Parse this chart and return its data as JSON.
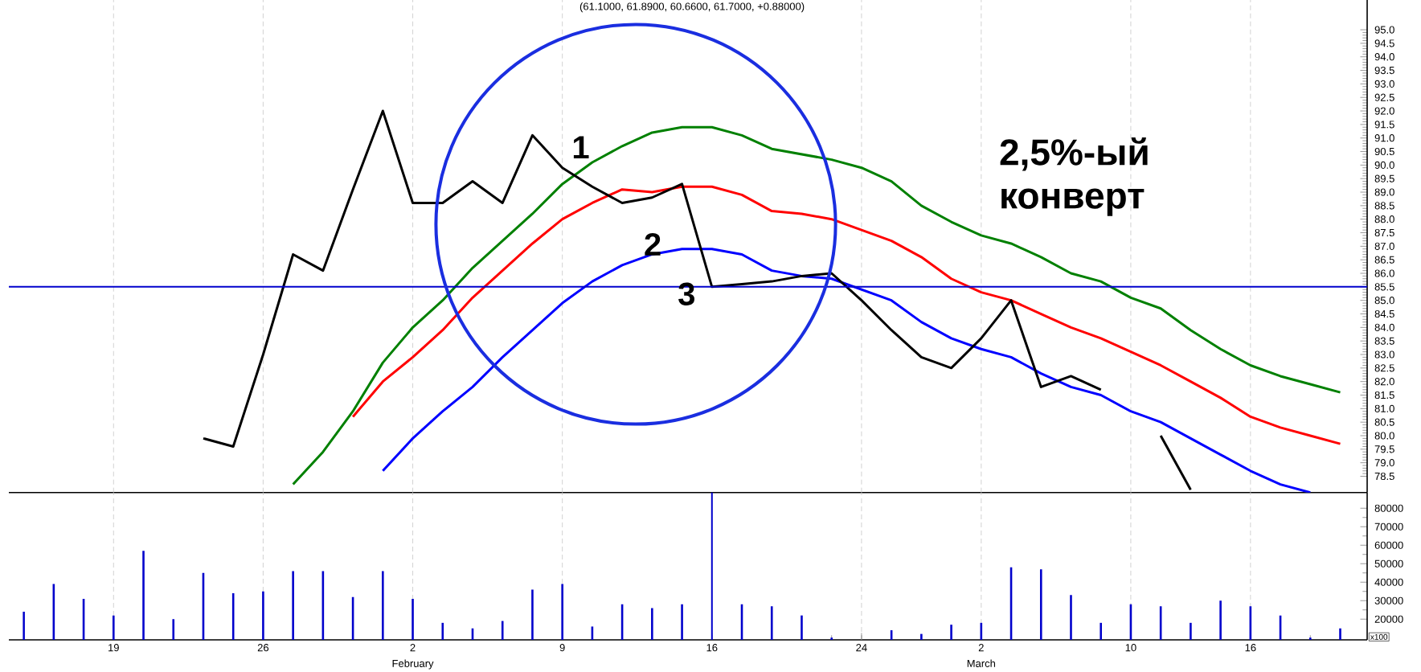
{
  "chart_data": [
    {
      "type": "line",
      "title": "(61.1000, 61.8900, 60.6600, 61.7000, +0.88000)",
      "categories": [
        null,
        null,
        null,
        "19",
        null,
        null,
        null,
        null,
        "26",
        null,
        null,
        null,
        null,
        "2",
        null,
        null,
        null,
        null,
        "9",
        null,
        null,
        null,
        null,
        "16",
        null,
        null,
        null,
        null,
        "24",
        null,
        null,
        null,
        "2",
        null,
        null,
        null,
        null,
        "10",
        null,
        null,
        null,
        "16",
        null,
        null,
        null
      ],
      "series": [
        {
          "color": "#008000",
          "values": [
            null,
            null,
            null,
            null,
            null,
            null,
            null,
            null,
            null,
            78.2,
            79.4,
            80.9,
            82.7,
            84.0,
            85.0,
            86.2,
            87.2,
            88.2,
            89.3,
            90.1,
            90.7,
            91.2,
            91.4,
            91.4,
            91.1,
            90.6,
            90.4,
            90.2,
            89.9,
            89.4,
            88.5,
            87.9,
            87.4,
            87.1,
            86.6,
            86.0,
            85.7,
            85.1,
            84.7,
            83.9,
            83.2,
            82.6,
            82.2,
            81.9,
            81.6
          ]
        },
        {
          "color": "#ff0000",
          "values": [
            null,
            null,
            null,
            null,
            null,
            null,
            null,
            null,
            null,
            null,
            null,
            80.7,
            82.0,
            82.9,
            83.9,
            85.1,
            86.1,
            87.1,
            88.0,
            88.6,
            89.1,
            89.0,
            89.2,
            89.2,
            88.9,
            88.3,
            88.2,
            88.0,
            87.6,
            87.2,
            86.6,
            85.8,
            85.3,
            85.0,
            84.5,
            84.0,
            83.6,
            83.1,
            82.6,
            82.0,
            81.4,
            80.7,
            80.3,
            80.0,
            79.7
          ]
        },
        {
          "color": "#0000ff",
          "values": [
            null,
            null,
            null,
            null,
            null,
            null,
            null,
            null,
            null,
            null,
            null,
            null,
            78.7,
            79.9,
            80.9,
            81.8,
            82.9,
            83.9,
            84.9,
            85.7,
            86.3,
            86.7,
            86.9,
            86.9,
            86.7,
            86.1,
            85.9,
            85.8,
            85.4,
            85.0,
            84.2,
            83.6,
            83.2,
            82.9,
            82.3,
            81.8,
            81.5,
            80.9,
            80.5,
            79.9,
            79.3,
            78.7,
            78.2,
            77.9,
            null
          ]
        },
        {
          "color": "#000000",
          "values": [
            null,
            null,
            null,
            null,
            null,
            null,
            79.9,
            79.6,
            83.0,
            86.7,
            86.1,
            89.1,
            92.0,
            88.6,
            88.6,
            89.4,
            88.6,
            91.1,
            89.9,
            89.2,
            88.6,
            88.8,
            89.3,
            85.5,
            85.6,
            85.7,
            85.9,
            86.0,
            85.0,
            83.9,
            82.9,
            82.5,
            83.6,
            85.0,
            81.8,
            82.2,
            81.7,
            null,
            80.0,
            78.0,
            null,
            null,
            null,
            null,
            null
          ]
        }
      ],
      "ylim": [
        77.9,
        96.1
      ],
      "yticks": [
        78.5,
        {
          "value": 79,
          "label": "79.0"
        },
        79.5,
        {
          "value": 80,
          "label": "80.0"
        },
        80.5,
        {
          "value": 81,
          "label": "81.0"
        },
        81.5,
        {
          "value": 82,
          "label": "82.0"
        },
        82.5,
        {
          "value": 83,
          "label": "83.0"
        },
        83.5,
        {
          "value": 84,
          "label": "84.0"
        },
        84.5,
        {
          "value": 85,
          "label": "85.0"
        },
        85.5,
        {
          "value": 86,
          "label": "86.0"
        },
        86.5,
        {
          "value": 87,
          "label": "87.0"
        },
        87.5,
        {
          "value": 88,
          "label": "88.0"
        },
        88.5,
        {
          "value": 89,
          "label": "89.0"
        },
        89.5,
        {
          "value": 90,
          "label": "90.0"
        },
        90.5,
        {
          "value": 91,
          "label": "91.0"
        },
        91.5,
        {
          "value": 92,
          "label": "92.0"
        },
        92.5,
        {
          "value": 93,
          "label": "93.0"
        },
        93.5,
        {
          "value": 94,
          "label": "94.0"
        },
        94.5,
        {
          "value": 95,
          "label": "95.0"
        }
      ],
      "tick_labels": "y",
      "grid": "x",
      "marker": "none",
      "line_style": "solid",
      "ref_lines": [
        {
          "axis": "y",
          "value": 85.5,
          "color": "#0000cc"
        }
      ],
      "annotations": [
        "1",
        "2",
        "3",
        "2,5%-ый конверт"
      ]
    },
    {
      "type": "bar",
      "categories": [
        null,
        null,
        null,
        "19",
        null,
        null,
        null,
        null,
        "26",
        null,
        null,
        null,
        null,
        "2",
        null,
        null,
        null,
        null,
        "9",
        null,
        null,
        null,
        null,
        "16",
        null,
        null,
        null,
        null,
        "24",
        null,
        null,
        null,
        "2",
        null,
        null,
        null,
        null,
        "10",
        null,
        null,
        null,
        "16",
        null,
        null,
        null
      ],
      "values": [
        24000,
        39000,
        31000,
        22000,
        57000,
        20000,
        45000,
        34000,
        35000,
        46000,
        46000,
        32000,
        46000,
        31000,
        18000,
        15000,
        19000,
        36000,
        39000,
        16000,
        28000,
        26000,
        28000,
        null,
        28000,
        27000,
        22000,
        10000,
        null,
        14000,
        12000,
        17000,
        18000,
        48000,
        47000,
        33000,
        18000,
        28000,
        27000,
        18000,
        30000,
        27000,
        22000,
        10000,
        15000
      ],
      "color": "#0000cc",
      "ylim": [
        8800,
        88500
      ],
      "yticks": [
        20000,
        30000,
        40000,
        50000,
        60000,
        70000,
        80000
      ],
      "grid": "x",
      "ref_lines": [
        {
          "axis": "x",
          "value": "16",
          "color": "#0000cc"
        }
      ],
      "annotations": [
        "x100",
        "February",
        "March"
      ]
    }
  ]
}
